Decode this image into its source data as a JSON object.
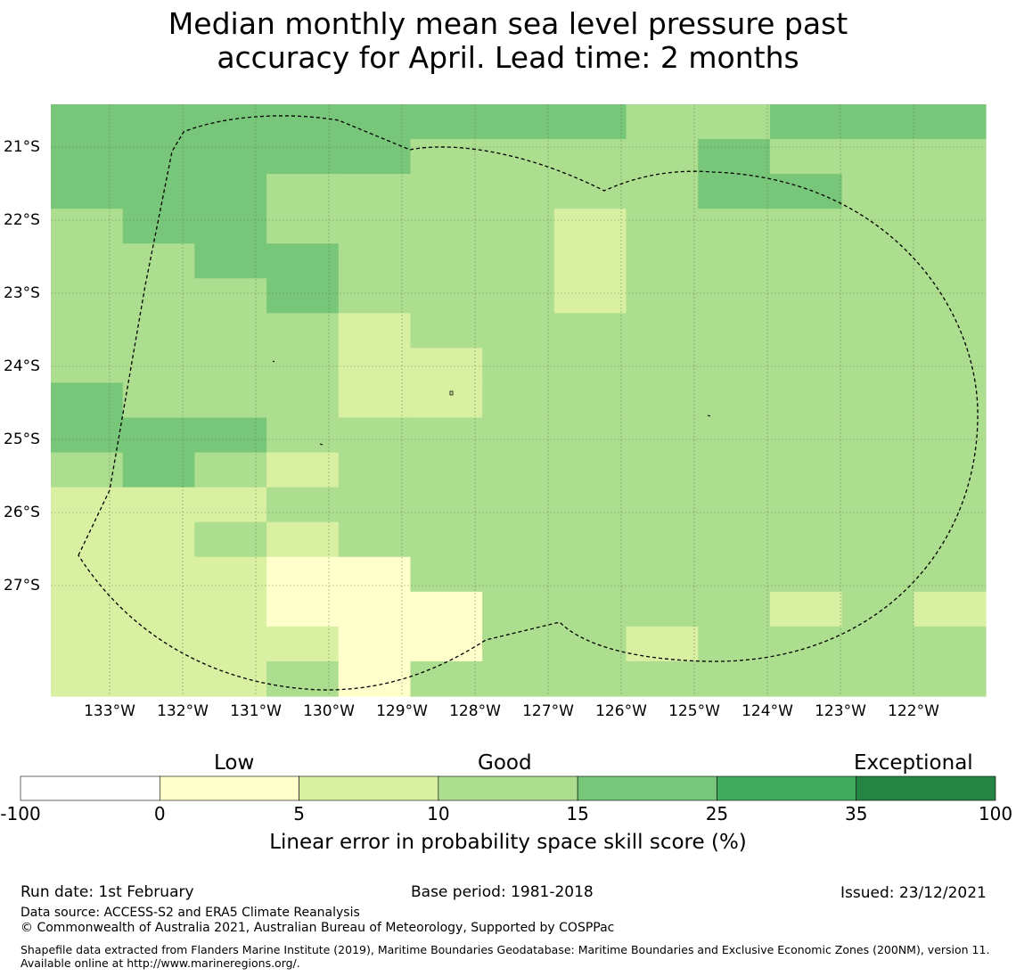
{
  "title_line1": "Median monthly mean sea level pressure past",
  "title_line2": "accuracy for April. Lead time: 2 months",
  "map": {
    "lat_labels": [
      {
        "text": "21°S",
        "lat": -21
      },
      {
        "text": "22°S",
        "lat": -22
      },
      {
        "text": "23°S",
        "lat": -23
      },
      {
        "text": "24°S",
        "lat": -24
      },
      {
        "text": "25°S",
        "lat": -25
      },
      {
        "text": "26°S",
        "lat": -26
      },
      {
        "text": "27°S",
        "lat": -27
      }
    ],
    "lon_labels": [
      {
        "text": "133°W",
        "lon": -133
      },
      {
        "text": "132°W",
        "lon": -132
      },
      {
        "text": "131°W",
        "lon": -131
      },
      {
        "text": "130°W",
        "lon": -130
      },
      {
        "text": "129°W",
        "lon": -129
      },
      {
        "text": "128°W",
        "lon": -128
      },
      {
        "text": "127°W",
        "lon": -127
      },
      {
        "text": "126°W",
        "lon": -126
      },
      {
        "text": "125°W",
        "lon": -125
      },
      {
        "text": "124°W",
        "lon": -124
      },
      {
        "text": "123°W",
        "lon": -123
      },
      {
        "text": "122°W",
        "lon": -122
      }
    ],
    "extent": {
      "lon_min": -133.8,
      "lon_max": -121.0,
      "lat_min": -28.5,
      "lat_max": -20.4
    },
    "colors": {
      "c0": "#ffffcc",
      "c1": "#d9f0a3",
      "c2": "#addd8e",
      "c3": "#78c679",
      "c4": "#41ab5d",
      "c5": "#238443"
    },
    "grid_cells_lon_step": 0.833,
    "grid_cells_lat_step": 0.555,
    "cells": [
      "3333333322333",
      "3333322223222",
      "3332222223322",
      "2332222122222",
      "2233222122222",
      "2223222122222",
      "2222122222222",
      "2222112222222",
      "3222112222222",
      "3332222222222",
      "2321222222222",
      "1112222222222",
      "1121222222222",
      "1110022222222",
      "1110002222121",
      "1111002212222",
      "1112022222222"
    ]
  },
  "colorbar": {
    "category_low": "Low",
    "category_good": "Good",
    "category_exceptional": "Exceptional",
    "ticks": [
      "-100",
      "0",
      "5",
      "10",
      "15",
      "25",
      "35",
      "100"
    ],
    "colors": [
      "#ffffff",
      "#ffffcc",
      "#d9f0a3",
      "#addd8e",
      "#78c679",
      "#41ab5d",
      "#238443"
    ],
    "label": "Linear error in probability space skill score (%)"
  },
  "footer": {
    "run_date": "Run date: 1st February",
    "base_period": "Base period: 1981-2018",
    "issued": "Issued: 23/12/2021",
    "data_source": "Data source: ACCESS-S2 and ERA5 Climate Reanalysis",
    "copyright": "© Commonwealth of Australia 2021, Australian Bureau of Meteorology, Supported by COSPPac",
    "shapefile": "Shapefile data extracted from Flanders Marine Institute (2019), Maritime Boundaries Geodatabase: Maritime Boundaries and Exclusive Economic Zones (200NM), version 11. Available online at http://www.marineregions.org/."
  }
}
